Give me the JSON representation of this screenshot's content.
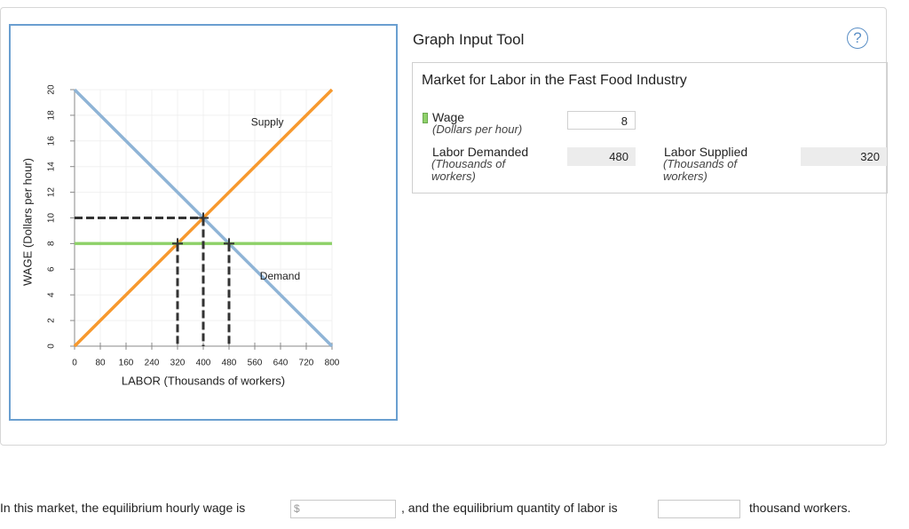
{
  "chart_data": {
    "type": "line",
    "x_label": "LABOR (Thousands of workers)",
    "y_label": "WAGE (Dollars per hour)",
    "xlim": [
      0,
      800
    ],
    "ylim": [
      0,
      20
    ],
    "xticks": [
      0,
      80,
      160,
      240,
      320,
      400,
      480,
      560,
      640,
      720,
      800
    ],
    "yticks": [
      0,
      2,
      4,
      6,
      8,
      10,
      12,
      14,
      16,
      18,
      20
    ],
    "grid": true,
    "series": [
      {
        "name": "Demand",
        "color": "#8fb4d6",
        "x": [
          0,
          800
        ],
        "values": [
          20,
          0
        ]
      },
      {
        "name": "Supply",
        "color": "#f7992e",
        "x": [
          0,
          800
        ],
        "values": [
          0,
          20
        ]
      },
      {
        "color": "#8fd16a",
        "x": [
          0,
          800
        ],
        "values": [
          8,
          8
        ]
      }
    ],
    "points": [
      {
        "x": 400,
        "y": 10,
        "hline": true
      },
      {
        "x": 320,
        "y": 8,
        "hline": false
      },
      {
        "x": 480,
        "y": 8,
        "hline": false
      }
    ]
  },
  "tool": {
    "title": "Graph Input Tool",
    "help": "?",
    "panel_title": "Market for Labor in the Fast Food Industry",
    "wage": {
      "label": "Wage",
      "unit": "(Dollars per hour)",
      "value": 8
    },
    "demanded": {
      "label": "Labor Demanded",
      "unit": "(Thousands of workers)",
      "value": 480
    },
    "supplied": {
      "label": "Labor Supplied",
      "unit": "(Thousands of workers)",
      "value": 320
    }
  },
  "question": {
    "part1": "In this market, the equilibrium hourly wage is",
    "currency": "$",
    "part2": ", and the equilibrium quantity of labor is",
    "part3": "thousand workers."
  }
}
